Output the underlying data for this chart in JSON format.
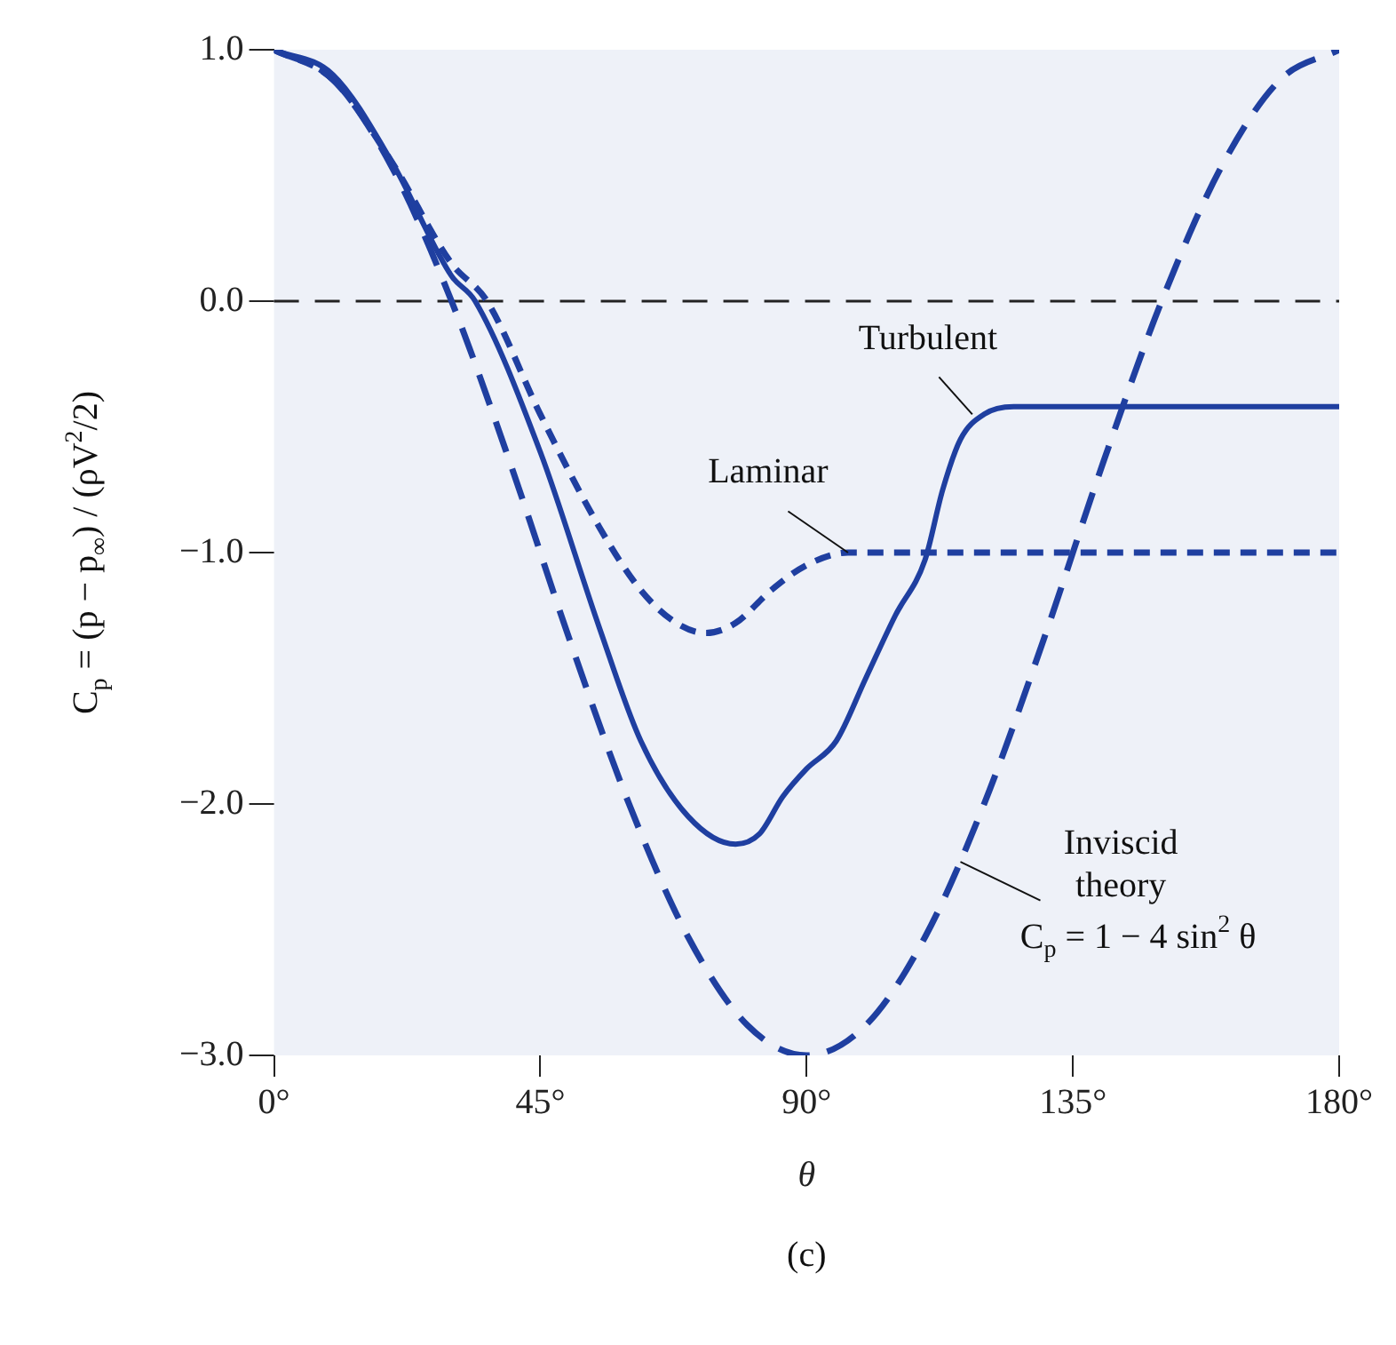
{
  "chart_data": {
    "type": "line",
    "xlabel": "θ",
    "ylabel": "C$_{p}$ = (p − p$_{∞}$) / (ρV$^{2}$/2)",
    "xlim": [
      0,
      180
    ],
    "xticks": [
      {
        "value": 0,
        "label": "0°"
      },
      {
        "value": 45,
        "label": "45°"
      },
      {
        "value": 90,
        "label": "90°"
      },
      {
        "value": 135,
        "label": "135°"
      },
      {
        "value": 180,
        "label": "180°"
      }
    ],
    "ylim": [
      -3,
      1
    ],
    "yticks": [
      {
        "value": 1,
        "label": "1.0"
      },
      {
        "value": 0,
        "label": "0.0"
      },
      {
        "value": -1,
        "label": "−1.0"
      },
      {
        "value": -2,
        "label": "−2.0"
      },
      {
        "value": -3,
        "label": "−3.0"
      }
    ],
    "grid": false,
    "legend": false,
    "marker": "none",
    "series": [
      {
        "color": "#1f3fa0",
        "line_style": "solid",
        "x": [
          0,
          10,
          20,
          30,
          34,
          45,
          55,
          62,
          70,
          78,
          82,
          86,
          90,
          95,
          100,
          105,
          110,
          113,
          116,
          120,
          125,
          180
        ],
        "values": [
          1.0,
          0.9,
          0.55,
          0.1,
          0.0,
          -0.6,
          -1.3,
          -1.75,
          -2.05,
          -2.16,
          -2.12,
          -1.97,
          -1.86,
          -1.75,
          -1.5,
          -1.25,
          -1.03,
          -0.75,
          -0.55,
          -0.45,
          -0.42,
          -0.42
        ]
      },
      {
        "color": "#1f3fa0",
        "line_style": "dashed",
        "x": [
          0,
          10,
          20,
          30,
          36,
          45,
          55,
          62,
          68,
          73,
          78,
          84,
          90,
          97,
          120,
          180
        ],
        "values": [
          1.0,
          0.88,
          0.55,
          0.15,
          0.0,
          -0.45,
          -0.9,
          -1.15,
          -1.28,
          -1.32,
          -1.28,
          -1.15,
          -1.05,
          -1.0,
          -1.0,
          -1.0
        ]
      },
      {
        "color": "#1f3fa0",
        "line_style": "dashed",
        "x": [
          0,
          10,
          20,
          30,
          40,
          50,
          60,
          70,
          80,
          90,
          100,
          110,
          120,
          130,
          140,
          150,
          160,
          170,
          180
        ],
        "values": [
          1.0,
          0.88,
          0.53,
          0.0,
          -0.65,
          -1.35,
          -2.0,
          -2.53,
          -2.88,
          -3.0,
          -2.88,
          -2.53,
          -2.0,
          -1.35,
          -0.65,
          0.0,
          0.53,
          0.88,
          1.0
        ]
      }
    ],
    "ref_lines": [
      {
        "axis": "y",
        "value": 0,
        "color": "#222222",
        "line_style": "dashed"
      }
    ],
    "annotations": [
      {
        "text": "Turbulent",
        "x": 118,
        "y": -0.45
      },
      {
        "text": "Laminar",
        "x": 97,
        "y": -1.0
      },
      {
        "text": "C$_{p}$ = 1 − 4 sin$^{2}$ θ",
        "x": 116,
        "y": -2.23
      },
      "Inviscid theory",
      "(c)"
    ]
  }
}
